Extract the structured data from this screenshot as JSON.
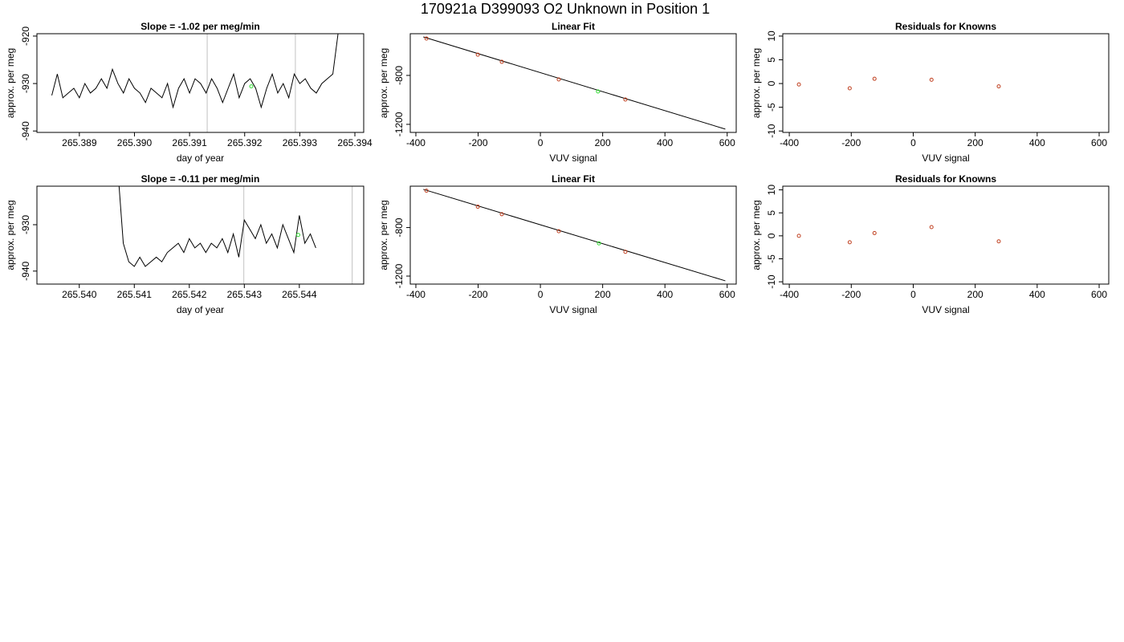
{
  "title": "170921a     D399093   O2 Unknown in Position  1",
  "chart_data": [
    {
      "type": "line",
      "title": "Slope =  -1.02  per meg/min",
      "xlabel": "day of year",
      "ylabel": "approx. per meg",
      "xlim": [
        265.38823,
        265.39416
      ],
      "ylim": [
        -940.3,
        -919.5
      ],
      "xticks": [
        265.389,
        {
          "value": 265.39,
          "label": "265.390"
        },
        265.391,
        265.392,
        265.393,
        265.394
      ],
      "yticks": [
        -920,
        -930,
        -940
      ],
      "lines": [
        {
          "color": "#000000",
          "x": [
            265.3885,
            265.3886,
            265.3887,
            265.3888,
            265.3889,
            265.389,
            265.3891,
            265.3892,
            265.3893,
            265.3894,
            265.3895,
            265.3896,
            265.3897,
            265.3898,
            265.3899,
            265.39,
            265.3901,
            265.3902,
            265.3903,
            265.3904,
            265.3905,
            265.3906,
            265.3907,
            265.3908,
            265.3909,
            265.391,
            265.3911,
            265.3912,
            265.3913,
            265.3914,
            265.3915,
            265.3916,
            265.3917,
            265.3918,
            265.3919,
            265.392,
            265.3921,
            265.3922,
            265.3923,
            265.3924,
            265.3925,
            265.3926,
            265.3927,
            265.3928,
            265.3929,
            265.393,
            265.3931,
            265.3932,
            265.3933,
            265.3934,
            265.3935,
            265.3936,
            265.3937
          ],
          "values": [
            -932.5,
            -928,
            -933,
            -932,
            -931,
            -933,
            -930,
            -932,
            -931,
            -929,
            -931,
            -927,
            -930,
            -932,
            -929,
            -931,
            -932,
            -934,
            -931,
            -932,
            -933,
            -930,
            -935,
            -931,
            -929,
            -932,
            -929,
            -930,
            -932,
            -929,
            -931,
            -934,
            -931,
            -928,
            -933,
            -930,
            -929,
            -931,
            -935,
            -931,
            -928,
            -932,
            -930,
            -933,
            -928,
            -930,
            -929,
            -931,
            -932,
            -930,
            -929,
            -928,
            -919
          ]
        }
      ],
      "points": [
        {
          "color": "#33dd33",
          "x": [
            265.39212
          ],
          "values": [
            -930.6
          ]
        }
      ],
      "vlines": {
        "color": "#cccccc",
        "x": [
          265.39132,
          265.39292
        ]
      }
    },
    {
      "type": "scatter",
      "title": "Linear Fit",
      "xlabel": "VUV signal",
      "ylabel": "approx. per meg",
      "xlim": [
        -418,
        629
      ],
      "ylim": [
        -1266,
        -459
      ],
      "xticks": [
        -400,
        -200,
        0,
        200,
        400,
        600
      ],
      "yticks": [
        -800,
        -1200
      ],
      "lines": [
        {
          "color": "#000000",
          "x": [
            -376,
            594
          ],
          "values": [
            -485,
            -1239
          ]
        }
      ],
      "points": [
        {
          "color": "#c04020",
          "x": [
            -366,
            -201,
            -124,
            59,
            273
          ],
          "values": [
            -498,
            -630,
            -689,
            -833,
            -997
          ]
        },
        {
          "color": "#33dd33",
          "x": [
            185
          ],
          "values": [
            -931
          ]
        }
      ]
    },
    {
      "type": "scatter",
      "title": "Residuals for Knowns",
      "xlabel": "VUV signal",
      "ylabel": "approx. per meg",
      "xlim": [
        -421,
        631
      ],
      "ylim": [
        -10.3,
        10.5
      ],
      "xticks": [
        -400,
        -200,
        0,
        200,
        400,
        600
      ],
      "yticks": [
        10,
        5,
        0,
        -5,
        -10
      ],
      "points": [
        {
          "color": "#c04020",
          "x": [
            -369,
            -205,
            -125,
            59,
            276
          ],
          "values": [
            -0.2,
            -1.0,
            1.0,
            0.8,
            -0.6
          ]
        }
      ]
    },
    {
      "type": "line",
      "title": "Slope =  -0.11  per meg/min",
      "xlabel": "day of year",
      "ylabel": "approx. per meg",
      "xlim": [
        265.53923,
        265.54517
      ],
      "ylim": [
        -942.8,
        -921.7
      ],
      "xticks": [
        {
          "value": 265.54,
          "label": "265.540"
        },
        265.541,
        265.542,
        265.543,
        265.544
      ],
      "yticks": [
        -930,
        -940
      ],
      "lines": [
        {
          "color": "#000000",
          "x": [
            265.5407,
            265.5408,
            265.5409,
            265.541,
            265.5411,
            265.5412,
            265.5413,
            265.5414,
            265.5415,
            265.5416,
            265.5417,
            265.5418,
            265.5419,
            265.542,
            265.5421,
            265.5422,
            265.5423,
            265.5424,
            265.5425,
            265.5426,
            265.5427,
            265.5428,
            265.5429,
            265.543,
            265.5431,
            265.5432,
            265.5433,
            265.5434,
            265.5435,
            265.5436,
            265.5437,
            265.5438,
            265.5439,
            265.544,
            265.5441,
            265.5442,
            265.5443
          ],
          "values": [
            -918,
            -934,
            -938,
            -939,
            -937,
            -939,
            -938,
            -937,
            -938,
            -936,
            -935,
            -934,
            -936,
            -933,
            -935,
            -934,
            -936,
            -934,
            -935,
            -933,
            -936,
            -932,
            -937,
            -929,
            -931,
            -933,
            -930,
            -934,
            -932,
            -935,
            -930,
            -933,
            -936,
            -928,
            -934,
            -932,
            -935
          ]
        }
      ],
      "points": [
        {
          "color": "#33dd33",
          "x": [
            265.54398
          ],
          "values": [
            -932.2
          ]
        }
      ],
      "vlines": {
        "color": "#cccccc",
        "x": [
          265.54299,
          265.54496
        ]
      }
    },
    {
      "type": "scatter",
      "title": "Linear Fit",
      "xlabel": "VUV signal",
      "ylabel": "approx. per meg",
      "xlim": [
        -418,
        629
      ],
      "ylim": [
        -1266,
        -459
      ],
      "xticks": [
        -400,
        -200,
        0,
        200,
        400,
        600
      ],
      "yticks": [
        -800,
        -1200
      ],
      "lines": [
        {
          "color": "#000000",
          "x": [
            -376,
            594
          ],
          "values": [
            -485,
            -1239
          ]
        }
      ],
      "points": [
        {
          "color": "#c04020",
          "x": [
            -366,
            -201,
            -124,
            59,
            273
          ],
          "values": [
            -496,
            -628,
            -690,
            -830,
            -1000
          ]
        },
        {
          "color": "#33dd33",
          "x": [
            188
          ],
          "values": [
            -930
          ]
        }
      ]
    },
    {
      "type": "scatter",
      "title": "Residuals for Knowns",
      "xlabel": "VUV signal",
      "ylabel": "approx. per meg",
      "xlim": [
        -421,
        631
      ],
      "ylim": [
        -10.5,
        10.8
      ],
      "xticks": [
        -400,
        -200,
        0,
        200,
        400,
        600
      ],
      "yticks": [
        10,
        5,
        0,
        -5,
        -10
      ],
      "points": [
        {
          "color": "#c04020",
          "x": [
            -369,
            -205,
            -125,
            59,
            276
          ],
          "values": [
            0.0,
            -1.4,
            0.6,
            1.9,
            -1.2
          ]
        }
      ]
    }
  ]
}
